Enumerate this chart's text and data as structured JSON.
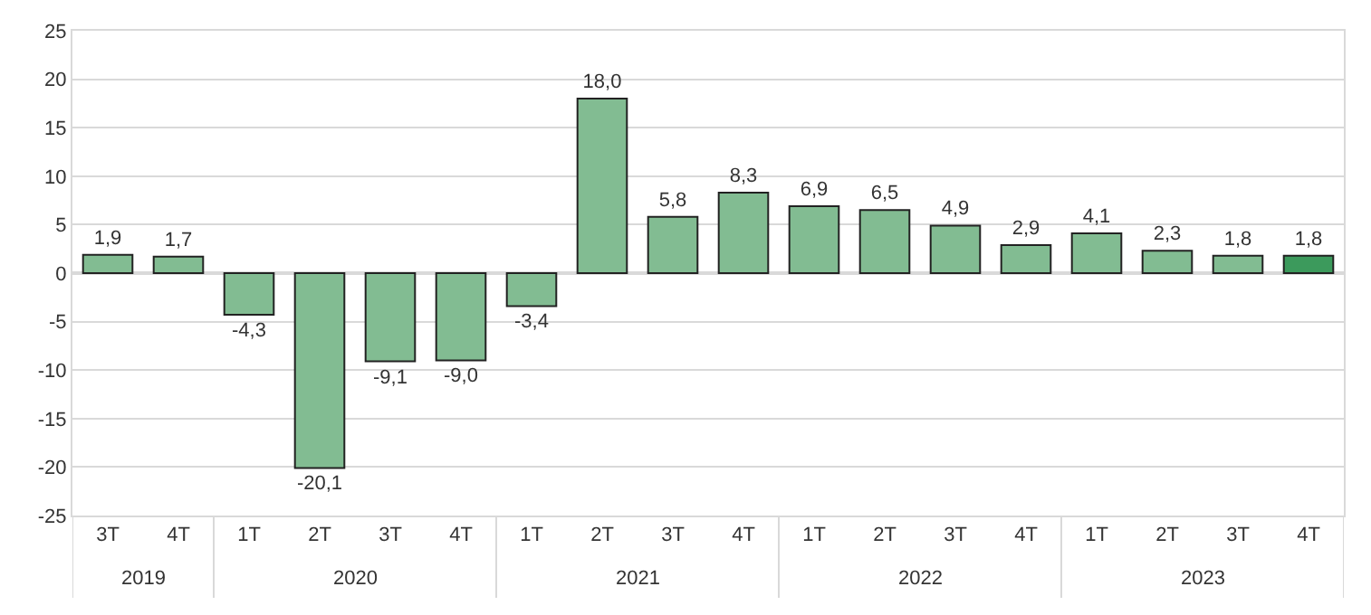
{
  "chart_data": {
    "type": "bar",
    "categories": [
      "3T",
      "4T",
      "1T",
      "2T",
      "3T",
      "4T",
      "1T",
      "2T",
      "3T",
      "4T",
      "1T",
      "2T",
      "3T",
      "4T",
      "1T",
      "2T",
      "3T",
      "4T"
    ],
    "values": [
      1.9,
      1.7,
      -4.3,
      -20.1,
      -9.1,
      -9.0,
      -3.4,
      18.0,
      5.8,
      8.3,
      6.9,
      6.5,
      4.9,
      2.9,
      4.1,
      2.3,
      1.8,
      1.8
    ],
    "value_labels": [
      "1,9",
      "1,7",
      "-4,3",
      "-20,1",
      "-9,1",
      "-9,0",
      "-3,4",
      "18,0",
      "5,8",
      "8,3",
      "6,9",
      "6,5",
      "4,9",
      "2,9",
      "4,1",
      "2,3",
      "1,8",
      "1,8"
    ],
    "colors": [
      "#82bc92",
      "#82bc92",
      "#82bc92",
      "#82bc92",
      "#82bc92",
      "#82bc92",
      "#82bc92",
      "#82bc92",
      "#82bc92",
      "#82bc92",
      "#82bc92",
      "#82bc92",
      "#82bc92",
      "#82bc92",
      "#82bc92",
      "#82bc92",
      "#82bc92",
      "#3c9a5c"
    ],
    "annotations": [
      "2019",
      "2020",
      "2021",
      "2022",
      "2023"
    ],
    "ylim": [
      -25,
      25
    ],
    "yticks": [
      -25,
      -20,
      -15,
      -10,
      -5,
      0,
      5,
      10,
      15,
      20,
      25
    ],
    "grid": "y"
  }
}
